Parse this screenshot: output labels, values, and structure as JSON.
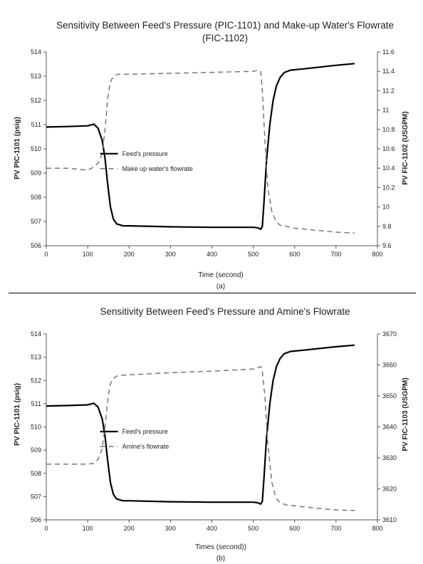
{
  "chart_data": [
    {
      "type": "line",
      "title": "Sensitivity Between Feed's Pressure (PIC-1101) and Make-up Water's Flowrate",
      "title_line2": "(FIC-1102)",
      "xlabel": "Time (second)",
      "ylabel_left": "PV PIC-1101 (psig)",
      "ylabel_right": "PV FIC-1102 (USGPM)",
      "subfigure_label": "(a)",
      "xlim": [
        0,
        800
      ],
      "ylim_left": [
        506,
        514
      ],
      "ylim_right": [
        9.6,
        11.6
      ],
      "x_ticks": [
        "0",
        "100",
        "200",
        "300",
        "400",
        "500",
        "600",
        "700",
        "800"
      ],
      "y_ticks_left": [
        "506",
        "507",
        "508",
        "509",
        "510",
        "511",
        "512",
        "513",
        "514"
      ],
      "y_ticks_right": [
        "9.6",
        "9.8",
        "10",
        "10.2",
        "10.4",
        "10.6",
        "10.8",
        "11",
        "11.2",
        "11.4",
        "11.6"
      ],
      "grid": false,
      "legend_position": "center-left",
      "series": [
        {
          "name": "Feed's pressure",
          "axis": "left",
          "style": "solid",
          "color": "#000000",
          "x": [
            0,
            50,
            100,
            115,
            125,
            135,
            142,
            148,
            155,
            162,
            170,
            185,
            200,
            300,
            400,
            500,
            510,
            518,
            522,
            526,
            532,
            540,
            548,
            556,
            565,
            575,
            590,
            620,
            700,
            745
          ],
          "y": [
            510.9,
            510.92,
            510.95,
            511.02,
            510.85,
            510.35,
            509.6,
            508.6,
            507.6,
            507.1,
            506.9,
            506.82,
            506.82,
            506.78,
            506.76,
            506.76,
            506.74,
            506.68,
            506.8,
            507.8,
            509.5,
            511.0,
            512.0,
            512.6,
            512.95,
            513.15,
            513.25,
            513.3,
            513.45,
            513.52
          ]
        },
        {
          "name": "Make up water's flowrate",
          "axis": "right",
          "style": "dashed",
          "color": "#777777",
          "x": [
            0,
            50,
            100,
            110,
            125,
            135,
            142,
            148,
            153,
            158,
            165,
            172,
            182,
            200,
            300,
            400,
            500,
            510,
            518,
            522,
            528,
            535,
            545,
            555,
            565,
            580,
            600,
            650,
            700,
            745
          ],
          "y": [
            10.4,
            10.4,
            10.38,
            10.4,
            10.45,
            10.55,
            10.8,
            11.1,
            11.25,
            11.32,
            11.35,
            11.37,
            11.37,
            11.37,
            11.38,
            11.39,
            11.4,
            11.41,
            11.4,
            11.2,
            10.7,
            10.2,
            9.95,
            9.85,
            9.81,
            9.8,
            9.78,
            9.76,
            9.74,
            9.73
          ]
        }
      ]
    },
    {
      "type": "line",
      "title": "Sensitivity Between Feed's Pressure and Amine's Flowrate",
      "xlabel": "Times (second))",
      "ylabel_left": "PV PIC-1101 (psig)",
      "ylabel_right": "PV FIC-1103 (USGPM)",
      "subfigure_label": "(b)",
      "xlim": [
        0,
        800
      ],
      "ylim_left": [
        506,
        514
      ],
      "ylim_right": [
        3610,
        3670
      ],
      "x_ticks": [
        "0",
        "100",
        "200",
        "300",
        "400",
        "500",
        "600",
        "700",
        "800"
      ],
      "y_ticks_left": [
        "506",
        "507",
        "508",
        "509",
        "510",
        "511",
        "512",
        "513",
        "514"
      ],
      "y_ticks_right": [
        "3610",
        "3620",
        "3630",
        "3640",
        "3650",
        "3660",
        "3670"
      ],
      "grid": false,
      "legend_position": "center-left",
      "series": [
        {
          "name": "Feed's pressure",
          "axis": "left",
          "style": "solid",
          "color": "#000000",
          "x": [
            0,
            50,
            100,
            115,
            125,
            135,
            142,
            148,
            155,
            162,
            170,
            185,
            200,
            300,
            400,
            500,
            510,
            518,
            522,
            526,
            532,
            540,
            548,
            556,
            565,
            575,
            590,
            620,
            700,
            745
          ],
          "y": [
            510.9,
            510.92,
            510.95,
            511.02,
            510.85,
            510.35,
            509.6,
            508.6,
            507.6,
            507.1,
            506.9,
            506.82,
            506.82,
            506.78,
            506.76,
            506.76,
            506.74,
            506.68,
            506.8,
            507.8,
            509.5,
            511.0,
            512.0,
            512.6,
            512.95,
            513.15,
            513.25,
            513.3,
            513.45,
            513.52
          ]
        },
        {
          "name": "Amine's flowrate",
          "axis": "right",
          "style": "dashed",
          "color": "#777777",
          "x": [
            0,
            50,
            100,
            115,
            125,
            135,
            142,
            148,
            153,
            158,
            165,
            172,
            182,
            200,
            300,
            400,
            500,
            510,
            518,
            522,
            528,
            535,
            545,
            555,
            565,
            580,
            600,
            650,
            700,
            745
          ],
          "y": [
            3628,
            3628,
            3628,
            3628.2,
            3629.5,
            3633,
            3640,
            3648,
            3653,
            3655,
            3656,
            3656.5,
            3656.7,
            3656.8,
            3657.5,
            3658,
            3658.7,
            3659,
            3659.5,
            3658,
            3650,
            3635,
            3622,
            3617,
            3615.5,
            3614.8,
            3614.5,
            3613.8,
            3613.2,
            3613
          ]
        }
      ]
    }
  ]
}
